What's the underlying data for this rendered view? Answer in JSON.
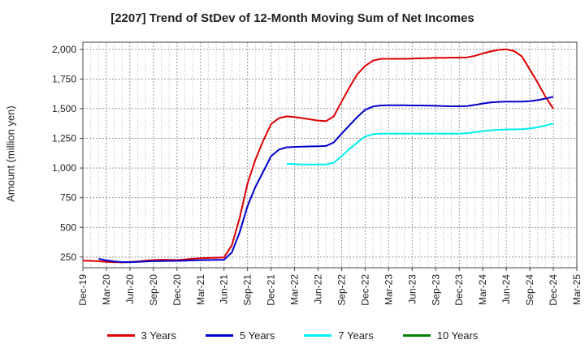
{
  "chart_data": {
    "type": "line",
    "title": "[2207]  Trend of StDev of 12-Month Moving Sum of Net Incomes",
    "ylabel": "Amount (million yen)",
    "xlabel": "",
    "ylim": [
      160,
      2060
    ],
    "yticks": [
      250,
      500,
      750,
      1000,
      1250,
      1500,
      1750,
      2000
    ],
    "ytick_labels": [
      "250",
      "500",
      "750",
      "1,000",
      "1,250",
      "1,500",
      "1,750",
      "2,000"
    ],
    "x_tick_labels": [
      "Dec-19",
      "Mar-20",
      "Jun-20",
      "Sep-20",
      "Dec-20",
      "Mar-21",
      "Jun-21",
      "Sep-21",
      "Dec-21",
      "Mar-22",
      "Jun-22",
      "Sep-22",
      "Dec-22",
      "Mar-23",
      "Jun-23",
      "Sep-23",
      "Dec-23",
      "Mar-24",
      "Jun-24",
      "Sep-24",
      "Dec-24",
      "Mar-25"
    ],
    "grid": true,
    "legend_position": "bottom",
    "series": [
      {
        "name": "3 Years",
        "color": "#dd0000",
        "points": [
          [
            "Dec-19",
            220
          ],
          [
            "Jan-20",
            218
          ],
          [
            "Feb-20",
            215
          ],
          [
            "Mar-20",
            210
          ],
          [
            "Apr-20",
            207
          ],
          [
            "May-20",
            205
          ],
          [
            "Jun-20",
            208
          ],
          [
            "Jul-20",
            213
          ],
          [
            "Aug-20",
            220
          ],
          [
            "Sep-20",
            225
          ],
          [
            "Oct-20",
            228
          ],
          [
            "Nov-20",
            226
          ],
          [
            "Dec-20",
            225
          ],
          [
            "Jan-21",
            230
          ],
          [
            "Feb-21",
            236
          ],
          [
            "Mar-21",
            240
          ],
          [
            "Apr-21",
            243
          ],
          [
            "May-21",
            245
          ],
          [
            "Jun-21",
            247
          ],
          [
            "Jul-21",
            350
          ],
          [
            "Aug-21",
            580
          ],
          [
            "Sep-21",
            870
          ],
          [
            "Oct-21",
            1070
          ],
          [
            "Nov-21",
            1230
          ],
          [
            "Dec-21",
            1370
          ],
          [
            "Jan-22",
            1420
          ],
          [
            "Feb-22",
            1435
          ],
          [
            "Mar-22",
            1430
          ],
          [
            "Apr-22",
            1420
          ],
          [
            "May-22",
            1410
          ],
          [
            "Jun-22",
            1400
          ],
          [
            "Jul-22",
            1395
          ],
          [
            "Aug-22",
            1435
          ],
          [
            "Sep-22",
            1560
          ],
          [
            "Oct-22",
            1680
          ],
          [
            "Nov-22",
            1790
          ],
          [
            "Dec-22",
            1860
          ],
          [
            "Jan-23",
            1905
          ],
          [
            "Feb-23",
            1920
          ],
          [
            "Mar-23",
            1920
          ],
          [
            "Apr-23",
            1920
          ],
          [
            "May-23",
            1920
          ],
          [
            "Jun-23",
            1922
          ],
          [
            "Jul-23",
            1924
          ],
          [
            "Aug-23",
            1926
          ],
          [
            "Sep-23",
            1928
          ],
          [
            "Oct-23",
            1929
          ],
          [
            "Nov-23",
            1930
          ],
          [
            "Dec-23",
            1930
          ],
          [
            "Jan-24",
            1932
          ],
          [
            "Feb-24",
            1945
          ],
          [
            "Mar-24",
            1965
          ],
          [
            "Apr-24",
            1982
          ],
          [
            "May-24",
            1995
          ],
          [
            "Jun-24",
            2000
          ],
          [
            "Jul-24",
            1985
          ],
          [
            "Aug-24",
            1940
          ],
          [
            "Sep-24",
            1830
          ],
          [
            "Oct-24",
            1720
          ],
          [
            "Nov-24",
            1600
          ],
          [
            "Dec-24",
            1500
          ]
        ]
      },
      {
        "name": "5 Years",
        "color": "#0000cc",
        "points": [
          [
            "Feb-20",
            235
          ],
          [
            "Mar-20",
            222
          ],
          [
            "Apr-20",
            213
          ],
          [
            "May-20",
            208
          ],
          [
            "Jun-20",
            207
          ],
          [
            "Jul-20",
            210
          ],
          [
            "Aug-20",
            213
          ],
          [
            "Sep-20",
            216
          ],
          [
            "Oct-20",
            217
          ],
          [
            "Nov-20",
            218
          ],
          [
            "Dec-20",
            218
          ],
          [
            "Jan-21",
            220
          ],
          [
            "Feb-21",
            222
          ],
          [
            "Mar-21",
            224
          ],
          [
            "Apr-21",
            225
          ],
          [
            "May-21",
            226
          ],
          [
            "Jun-21",
            227
          ],
          [
            "Jul-21",
            290
          ],
          [
            "Aug-21",
            460
          ],
          [
            "Sep-21",
            680
          ],
          [
            "Oct-21",
            840
          ],
          [
            "Nov-21",
            970
          ],
          [
            "Dec-21",
            1100
          ],
          [
            "Jan-22",
            1155
          ],
          [
            "Feb-22",
            1175
          ],
          [
            "Mar-22",
            1178
          ],
          [
            "Apr-22",
            1180
          ],
          [
            "May-22",
            1182
          ],
          [
            "Jun-22",
            1184
          ],
          [
            "Jul-22",
            1186
          ],
          [
            "Aug-22",
            1215
          ],
          [
            "Sep-22",
            1290
          ],
          [
            "Oct-22",
            1360
          ],
          [
            "Nov-22",
            1430
          ],
          [
            "Dec-22",
            1490
          ],
          [
            "Jan-23",
            1518
          ],
          [
            "Feb-23",
            1527
          ],
          [
            "Mar-23",
            1528
          ],
          [
            "Apr-23",
            1528
          ],
          [
            "May-23",
            1528
          ],
          [
            "Jun-23",
            1527
          ],
          [
            "Jul-23",
            1527
          ],
          [
            "Aug-23",
            1526
          ],
          [
            "Sep-23",
            1524
          ],
          [
            "Oct-23",
            1522
          ],
          [
            "Nov-23",
            1520
          ],
          [
            "Dec-23",
            1520
          ],
          [
            "Jan-24",
            1522
          ],
          [
            "Feb-24",
            1532
          ],
          [
            "Mar-24",
            1543
          ],
          [
            "Apr-24",
            1552
          ],
          [
            "May-24",
            1557
          ],
          [
            "Jun-24",
            1560
          ],
          [
            "Jul-24",
            1560
          ],
          [
            "Aug-24",
            1560
          ],
          [
            "Sep-24",
            1564
          ],
          [
            "Oct-24",
            1572
          ],
          [
            "Nov-24",
            1585
          ],
          [
            "Dec-24",
            1600
          ]
        ]
      },
      {
        "name": "7 Years",
        "color": "#00eeee",
        "points": [
          [
            "Feb-22",
            1035
          ],
          [
            "Mar-22",
            1033
          ],
          [
            "Apr-22",
            1030
          ],
          [
            "May-22",
            1030
          ],
          [
            "Jun-22",
            1030
          ],
          [
            "Jul-22",
            1030
          ],
          [
            "Aug-22",
            1045
          ],
          [
            "Sep-22",
            1100
          ],
          [
            "Oct-22",
            1160
          ],
          [
            "Nov-22",
            1215
          ],
          [
            "Dec-22",
            1265
          ],
          [
            "Jan-23",
            1285
          ],
          [
            "Feb-23",
            1290
          ],
          [
            "Mar-23",
            1290
          ],
          [
            "Apr-23",
            1290
          ],
          [
            "May-23",
            1290
          ],
          [
            "Jun-23",
            1290
          ],
          [
            "Jul-23",
            1290
          ],
          [
            "Aug-23",
            1290
          ],
          [
            "Sep-23",
            1290
          ],
          [
            "Oct-23",
            1290
          ],
          [
            "Nov-23",
            1290
          ],
          [
            "Dec-23",
            1290
          ],
          [
            "Jan-24",
            1293
          ],
          [
            "Feb-24",
            1302
          ],
          [
            "Mar-24",
            1310
          ],
          [
            "Apr-24",
            1318
          ],
          [
            "May-24",
            1322
          ],
          [
            "Jun-24",
            1325
          ],
          [
            "Jul-24",
            1325
          ],
          [
            "Aug-24",
            1327
          ],
          [
            "Sep-24",
            1333
          ],
          [
            "Oct-24",
            1343
          ],
          [
            "Nov-24",
            1358
          ],
          [
            "Dec-24",
            1375
          ]
        ]
      },
      {
        "name": "10 Years",
        "color": "#008000",
        "points": []
      }
    ]
  }
}
